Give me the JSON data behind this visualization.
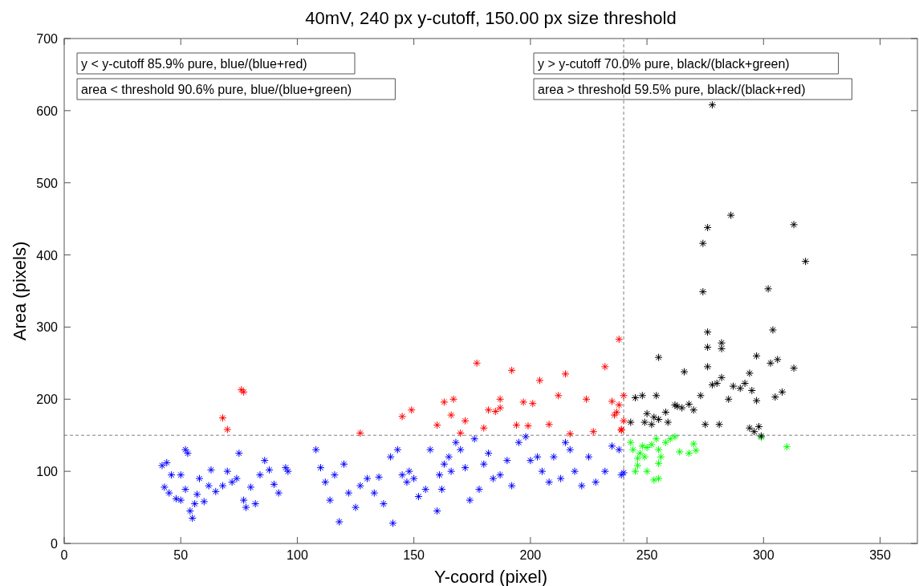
{
  "chart_data": {
    "type": "scatter",
    "title": "40mV, 240 px y-cutoff, 150.00 px size threshold",
    "xlabel": "Y-coord (pixel)",
    "ylabel": "Area (pixels)",
    "xlim": [
      0,
      366
    ],
    "ylim": [
      0,
      700
    ],
    "xticks": [
      0,
      50,
      100,
      150,
      200,
      250,
      300,
      350
    ],
    "yticks": [
      0,
      100,
      200,
      300,
      400,
      500,
      600,
      700
    ],
    "grid": false,
    "marker": "cross",
    "annotations": [
      "y < y-cutoff 85.9% pure, blue/(blue+red)",
      "area < threshold 90.6% pure, blue/(blue+green)",
      "y > y-cutoff 70.0% pure, black/(black+green)",
      "area > threshold 59.5% pure, black/(black+red)"
    ],
    "ref_lines": [
      {
        "axis": "x",
        "value": 240,
        "color": "#808080",
        "line_style": "dashed"
      },
      {
        "axis": "y",
        "value": 150,
        "color": "#808080",
        "line_style": "dashed"
      }
    ],
    "series": [
      {
        "color": "#0000ff",
        "x": [
          42,
          44,
          43,
          45,
          46,
          48,
          50,
          50,
          52,
          53,
          52,
          54,
          55,
          57,
          56,
          58,
          60,
          62,
          63,
          65,
          68,
          70,
          72,
          74,
          75,
          77,
          78,
          80,
          82,
          84,
          86,
          88,
          90,
          92,
          95,
          96,
          108,
          110,
          112,
          114,
          116,
          118,
          120,
          122,
          125,
          127,
          130,
          133,
          135,
          137,
          140,
          141,
          143,
          145,
          147,
          148,
          150,
          152,
          155,
          157,
          160,
          161,
          162,
          163,
          165,
          166,
          168,
          170,
          172,
          174,
          176,
          178,
          180,
          182,
          184,
          187,
          190,
          192,
          195,
          198,
          200,
          203,
          205,
          208,
          210,
          213,
          215,
          217,
          219,
          222,
          225,
          228,
          232,
          235,
          238,
          239,
          240
        ],
        "values": [
          108,
          112,
          78,
          70,
          95,
          62,
          60,
          95,
          75,
          125,
          130,
          45,
          35,
          68,
          55,
          90,
          58,
          80,
          102,
          72,
          80,
          100,
          85,
          90,
          125,
          60,
          50,
          78,
          55,
          95,
          115,
          102,
          82,
          70,
          105,
          100,
          130,
          105,
          85,
          60,
          95,
          30,
          110,
          70,
          50,
          80,
          90,
          70,
          92,
          55,
          120,
          28,
          130,
          95,
          85,
          100,
          90,
          65,
          75,
          130,
          45,
          95,
          75,
          110,
          120,
          100,
          140,
          130,
          105,
          60,
          145,
          75,
          110,
          125,
          90,
          95,
          115,
          80,
          140,
          148,
          115,
          120,
          100,
          85,
          120,
          90,
          140,
          130,
          100,
          80,
          120,
          85,
          100,
          135,
          130,
          95,
          98
        ]
      },
      {
        "color": "#ff0000",
        "x": [
          76,
          77,
          68,
          70,
          127,
          145,
          149,
          160,
          163,
          166,
          167,
          170,
          172,
          177,
          180,
          182,
          185,
          187,
          187,
          192,
          194,
          197,
          199,
          201,
          204,
          208,
          212,
          215,
          217,
          224,
          227,
          232,
          235,
          236,
          237,
          238,
          239,
          239,
          238,
          240,
          240
        ],
        "values": [
          213,
          210,
          174,
          158,
          153,
          176,
          185,
          164,
          196,
          178,
          200,
          153,
          170,
          250,
          160,
          185,
          183,
          200,
          188,
          240,
          164,
          196,
          163,
          194,
          226,
          165,
          205,
          235,
          152,
          200,
          155,
          245,
          197,
          178,
          182,
          192,
          157,
          158,
          283,
          205,
          170
        ]
      },
      {
        "color": "#00ff00",
        "x": [
          243,
          244,
          247,
          248,
          249,
          246,
          245,
          250,
          252,
          254,
          255,
          256,
          255,
          253,
          255,
          258,
          260,
          262,
          264,
          268,
          270,
          271,
          299,
          310,
          246,
          250
        ],
        "values": [
          140,
          130,
          125,
          135,
          120,
          108,
          100,
          133,
          137,
          145,
          130,
          120,
          111,
          88,
          90,
          140,
          145,
          148,
          127,
          125,
          138,
          129,
          147,
          134,
          118,
          100
        ]
      },
      {
        "color": "#000000",
        "x": [
          278,
          274,
          276,
          286,
          274,
          276,
          313,
          318,
          302,
          304,
          297,
          294,
          276,
          282,
          282,
          255,
          266,
          248,
          245,
          254,
          243,
          249,
          253,
          255,
          258,
          262,
          265,
          268,
          270,
          273,
          275,
          276,
          282,
          287,
          285,
          290,
          292,
          295,
          297,
          278,
          280,
          281,
          294,
          296,
          298,
          299,
          303,
          306,
          305,
          308,
          313,
          259,
          263,
          250,
          252
        ],
        "values": [
          608,
          416,
          438,
          455,
          349,
          293,
          442,
          391,
          353,
          296,
          260,
          236,
          272,
          278,
          270,
          258,
          238,
          205,
          202,
          205,
          168,
          168,
          175,
          172,
          182,
          192,
          188,
          193,
          185,
          205,
          165,
          245,
          230,
          218,
          200,
          215,
          222,
          212,
          198,
          220,
          222,
          165,
          160,
          155,
          162,
          149,
          250,
          255,
          203,
          210,
          243,
          168,
          190,
          180,
          165
        ]
      }
    ]
  }
}
